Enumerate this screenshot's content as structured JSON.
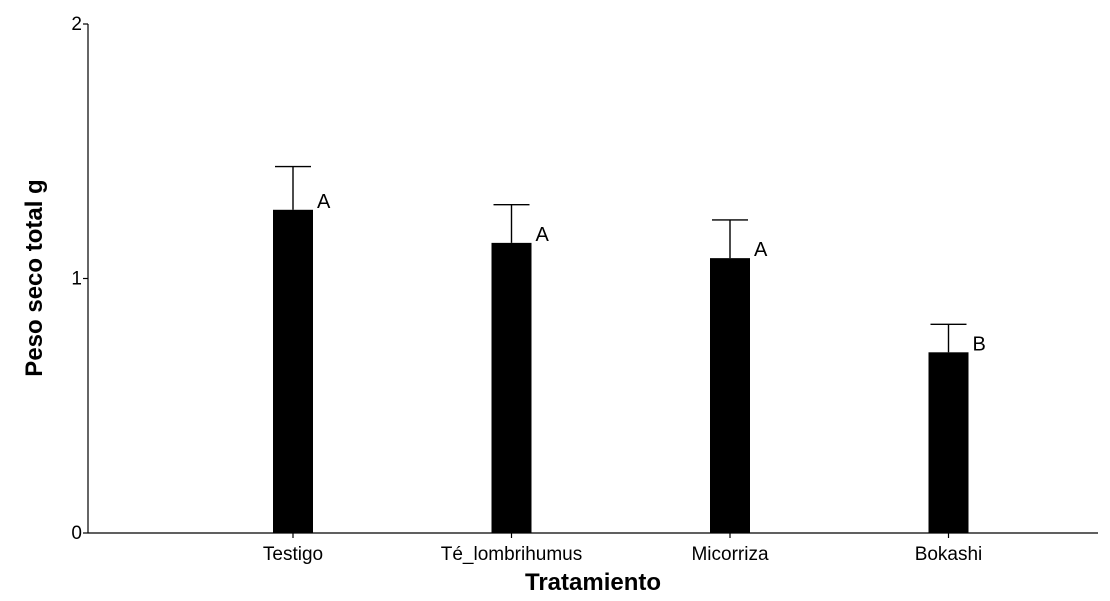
{
  "chart_data": {
    "type": "bar",
    "title": "",
    "xlabel": "Tratamiento",
    "ylabel": "Peso seco total g",
    "categories": [
      "Testigo",
      "Té_lombrihumus",
      "Micorriza",
      "Bokashi"
    ],
    "values": [
      1.27,
      1.14,
      1.08,
      0.71
    ],
    "error_upper": [
      1.44,
      1.29,
      1.23,
      0.82
    ],
    "significance_letters": [
      "A",
      "A",
      "A",
      "B"
    ],
    "ylim": [
      0,
      2
    ],
    "yticks": [
      "0",
      "1",
      "2"
    ],
    "bar_color": "#000000",
    "grid": false,
    "legend": "none"
  }
}
